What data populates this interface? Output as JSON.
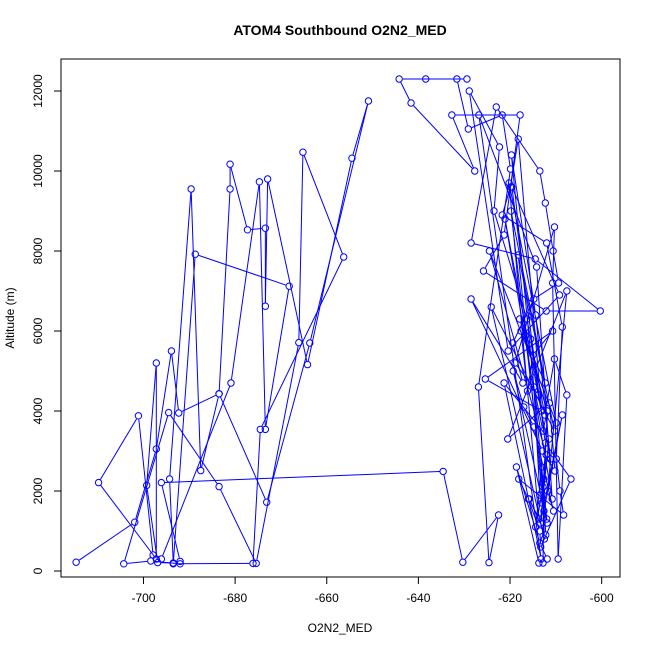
{
  "chart_data": {
    "type": "line",
    "title": "ATOM4 Southbound O2N2_MED",
    "xlabel": "O2N2_MED",
    "ylabel": "Altitude (m)",
    "xlim": [
      -718,
      -596
    ],
    "ylim": [
      -150,
      12800
    ],
    "x_ticks": [
      -700,
      -680,
      -660,
      -640,
      -620,
      -600
    ],
    "y_ticks": [
      0,
      2000,
      4000,
      6000,
      8000,
      10000,
      12000
    ],
    "grid": false,
    "legend": "none",
    "series_color": "#0000ff",
    "marker": "open-circle",
    "x": [
      -714.7,
      -701.9,
      -697.2,
      -693.9,
      -692.3,
      -683.5,
      -673.1,
      -663.7,
      -650.9,
      -654.5,
      -664.2,
      -672.9,
      -673.4,
      -673.4,
      -677.3,
      -681.1,
      -681.1,
      -683.5,
      -687.5,
      -689.6,
      -694.3,
      -693.5,
      -696.9,
      -699.3,
      -697.2,
      -697.2,
      -709.8,
      -701.1,
      -697.9,
      -696.1,
      -680.9,
      -674.7,
      -673.4,
      -668.2,
      -688.7,
      -693.5,
      -676.1,
      -674.5,
      -656.3,
      -665.2,
      -666.1,
      -675.4,
      -683.5,
      -694.5,
      -704.3,
      -698.4,
      -692.0,
      -692.0,
      -696.1,
      -634.6,
      -630.3,
      -622.5,
      -624.6,
      -626.9,
      -619.9,
      -621.7,
      -629.1,
      -631.6,
      -638.4,
      -629.4,
      -644.2,
      -641.6,
      -627.7,
      -632.7,
      -617.8,
      -621.3,
      -625.8,
      -612.1,
      -600.3,
      -614.5,
      -628.5,
      -623.0,
      -613.5,
      -612.3,
      -610.6,
      -609.4,
      -614.8,
      -619.4,
      -617.2,
      -628.5,
      -612.9,
      -610.2,
      -611.4,
      -620.5,
      -607.6,
      -611.8,
      -610.5,
      -614.8,
      -617.0,
      -619.3,
      -611.9,
      -619.8,
      -612.3,
      -617.6,
      -616.2,
      -615.0,
      -610.7,
      -625.4,
      -613.1,
      -618.2,
      -619.9,
      -621.7,
      -612.0,
      -608.6,
      -609.9,
      -609.1,
      -608.3,
      -618.1,
      -616.0,
      -613.5,
      -613.3,
      -606.7,
      -612.3,
      -619.6,
      -609.2,
      -620.4,
      -628.9,
      -622.3,
      -623.5,
      -616.3,
      -612.4,
      -610.3,
      -607.6,
      -609.5,
      -610.7,
      -610.3,
      -618.9,
      -613.8,
      -615.5,
      -617.9,
      -611.9,
      -612.8,
      -614.8,
      -613.5,
      -612.0,
      -619.7,
      -614.4,
      -611.2,
      -621.1,
      -610.8,
      -614.2,
      -626.8,
      -613.2,
      -621.3,
      -611.5,
      -613.4,
      -608.6,
      -612.6,
      -618.2,
      -610.3,
      -624.1,
      -612.5,
      -613.1,
      -614.4,
      -612.8,
      -612.2,
      -615.8,
      -613.7,
      -620.2,
      -609.9,
      -624.5,
      -612.1,
      -613.0,
      -611.8,
      -612.6,
      -612.8,
      -611.9,
      -613.5,
      -618.6,
      -613.7
    ],
    "y": [
      220,
      1220,
      3050,
      5500,
      3950,
      4430,
      1720,
      5700,
      11750,
      10320,
      5160,
      9800,
      6620,
      8570,
      8530,
      10170,
      9550,
      4430,
      2510,
      9550,
      2300,
      200,
      210,
      2140,
      5200,
      300,
      2210,
      3880,
      400,
      300,
      4700,
      9730,
      3540,
      7120,
      7920,
      180,
      190,
      3540,
      7850,
      10470,
      5710,
      190,
      2110,
      3960,
      180,
      250,
      180,
      240,
      2210,
      2490,
      220,
      1400,
      210,
      4600,
      10050,
      11400,
      11050,
      12300,
      12300,
      12300,
      12300,
      11700,
      10000,
      11400,
      11400,
      8400,
      7500,
      6500,
      6500,
      7800,
      8200,
      11600,
      10000,
      9200,
      8000,
      7200,
      6800,
      5700,
      4700,
      6800,
      3000,
      2500,
      4200,
      3300,
      7000,
      2000,
      1500,
      3600,
      4100,
      5000,
      1200,
      9000,
      4700,
      6000,
      4500,
      5400,
      6000,
      4800,
      4000,
      10800,
      9600,
      8900,
      8200,
      6100,
      2800,
      2000,
      1400,
      2300,
      1800,
      1000,
      600,
      2300,
      3200,
      9600,
      6900,
      5500,
      12000,
      10600,
      9000,
      6300,
      3900,
      5300,
      4400,
      300,
      7200,
      8600,
      5200,
      4400,
      5800,
      6300,
      4000,
      3500,
      4600,
      1900,
      1300,
      10400,
      6400,
      2800,
      8800,
      1800,
      7600,
      11400,
      300,
      4700,
      3300,
      1200,
      3900,
      1500,
      7900,
      3500,
      6600,
      800,
      2600,
      1100,
      2100,
      900,
      1800,
      1300,
      9700,
      3700,
      8000,
      2900,
      1700,
      4000,
      2300,
      200,
      300,
      700,
      2600,
      200
    ]
  }
}
